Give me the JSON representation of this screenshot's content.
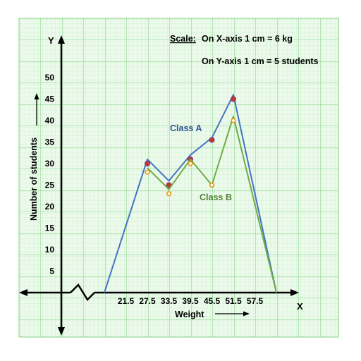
{
  "chart_data": {
    "type": "line",
    "scale_title": "Scale:",
    "scale_x": "On X-axis 1 cm = 6 kg",
    "scale_y": "On Y-axis 1 cm = 5 students",
    "x_axis_letter": "X",
    "y_axis_letter": "Y",
    "xlabel": "Weight",
    "ylabel": "Number of students",
    "x_ticks": [
      "21.5",
      "27.5",
      "33.5",
      "39.5",
      "45.5",
      "51.5",
      "57.5"
    ],
    "y_ticks": [
      5,
      10,
      15,
      20,
      25,
      30,
      35,
      40,
      45,
      50
    ],
    "ylim": [
      0,
      50
    ],
    "grid": true,
    "series": [
      {
        "name": "Class A",
        "color": "#4472c4",
        "marker_color": "#c0392b",
        "x": [
          15.5,
          27.5,
          33.5,
          39.5,
          45.5,
          51.5,
          63.5
        ],
        "line_y": [
          0,
          31,
          26,
          32,
          36,
          46,
          0
        ],
        "marker_y": [
          null,
          30,
          25,
          31,
          35.5,
          45,
          null
        ]
      },
      {
        "name": "Class B",
        "color": "#70ad47",
        "marker_color": "#e59400",
        "x": [
          27.5,
          33.5,
          39.5,
          45.5,
          51.5,
          63.5
        ],
        "line_y": [
          29,
          24,
          31,
          25,
          41,
          0
        ],
        "marker_y": [
          28,
          23,
          30,
          25,
          40,
          null
        ]
      }
    ]
  }
}
